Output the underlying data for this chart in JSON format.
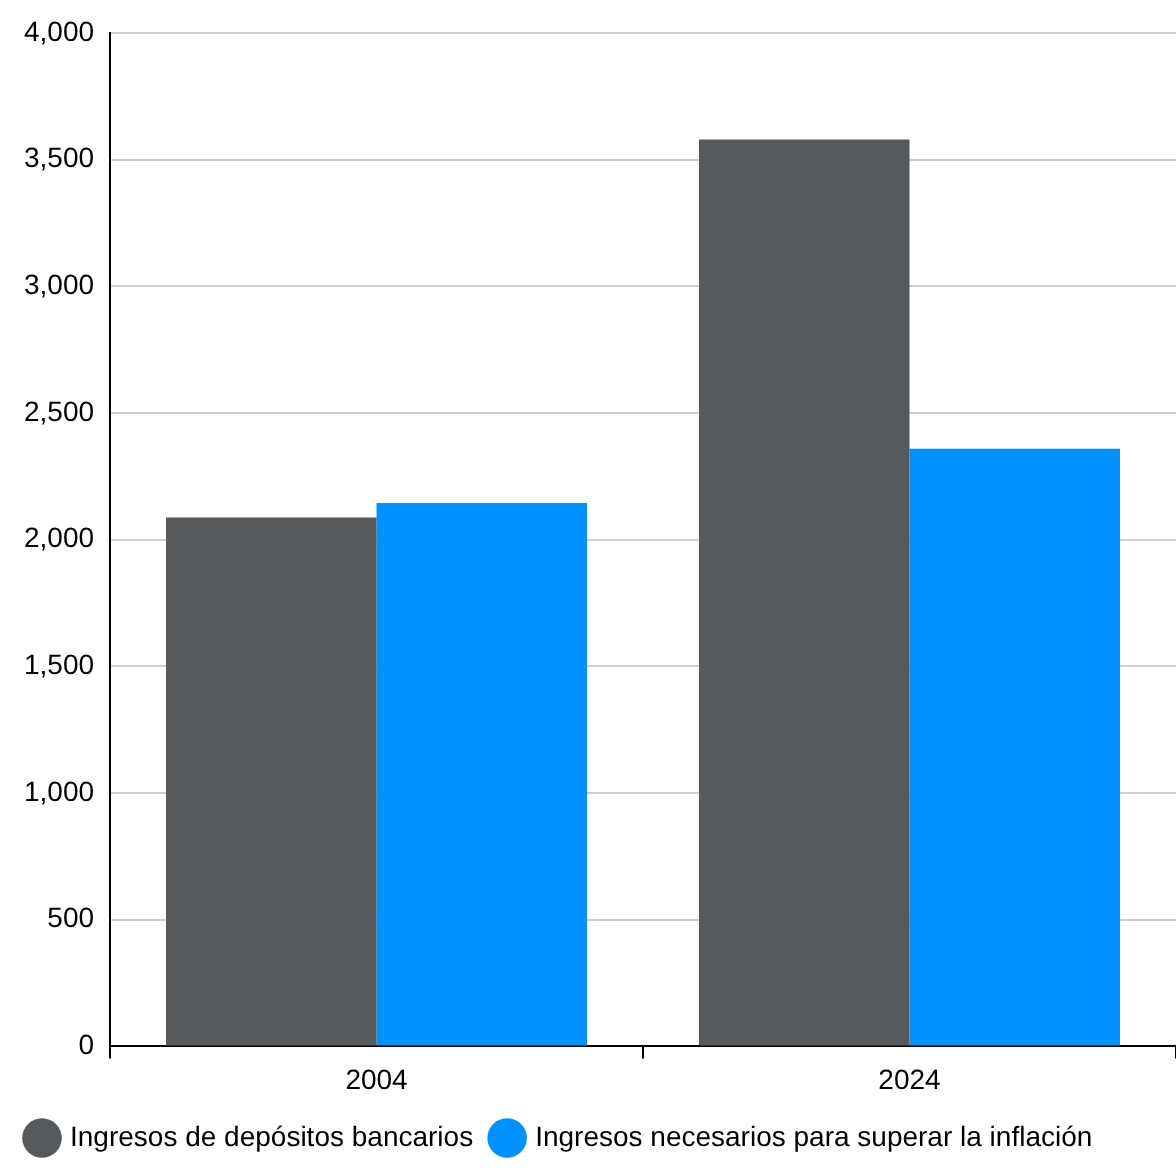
{
  "chart_data": {
    "type": "bar",
    "categories": [
      "2004",
      "2024"
    ],
    "series": [
      {
        "name": "Ingresos de depósitos bancarios",
        "color": "#575a5d",
        "values": [
          2087,
          3579
        ]
      },
      {
        "name": "Ingresos necesarios para superar la inflación",
        "color": "#0091ff",
        "values": [
          2144,
          2359
        ]
      }
    ],
    "ylim": [
      0,
      4000
    ],
    "yticks": [
      {
        "value": 0,
        "label": "0"
      },
      {
        "value": 500,
        "label": "500"
      },
      {
        "value": 1000,
        "label": "1,000"
      },
      {
        "value": 1500,
        "label": "1,500"
      },
      {
        "value": 2000,
        "label": "2,000"
      },
      {
        "value": 2500,
        "label": "2,500"
      },
      {
        "value": 3000,
        "label": "3,000"
      },
      {
        "value": 3500,
        "label": "3,500"
      },
      {
        "value": 4000,
        "label": "4,000"
      }
    ],
    "grid": "y",
    "legend": "bottom left"
  }
}
